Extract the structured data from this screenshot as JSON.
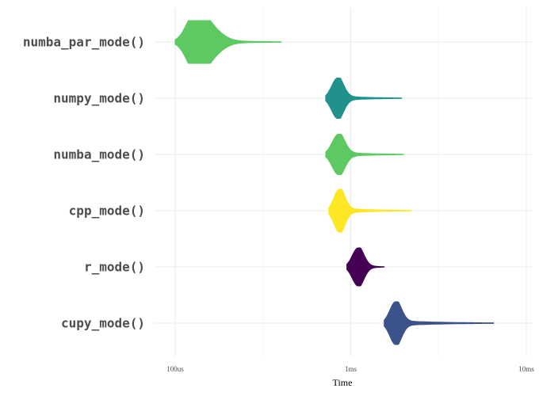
{
  "chart_data": {
    "type": "violin",
    "xlabel": "Time",
    "x_scale": "log",
    "x_ticks": [
      {
        "value_ms": 0.1,
        "label": "100us"
      },
      {
        "value_ms": 1,
        "label": "1ms"
      },
      {
        "value_ms": 10,
        "label": "10ms"
      }
    ],
    "xlim_ms": [
      0.08,
      12
    ],
    "grid": true,
    "legend": "none",
    "series": [
      {
        "label": "numba_par_mode()",
        "color": "#5ec962",
        "peaks_ms": [
          0.13,
          0.15
        ],
        "range_ms": [
          0.1,
          0.4
        ],
        "width": 0.9
      },
      {
        "label": "numpy_mode()",
        "color": "#21918c",
        "peaks_ms": [
          0.84
        ],
        "range_ms": [
          0.72,
          1.95
        ],
        "width": 0.85
      },
      {
        "label": "numba_mode()",
        "color": "#5ec962",
        "peaks_ms": [
          0.85
        ],
        "range_ms": [
          0.72,
          2.0
        ],
        "width": 0.85
      },
      {
        "label": "cpp_mode()",
        "color": "#fde725",
        "peaks_ms": [
          0.86
        ],
        "range_ms": [
          0.75,
          2.2
        ],
        "width": 0.9
      },
      {
        "label": "r_mode()",
        "color": "#440154",
        "peaks_ms": [
          1.1
        ],
        "range_ms": [
          0.95,
          1.55
        ],
        "width": 0.8
      },
      {
        "label": "cupy_mode()",
        "color": "#3b528b",
        "peaks_ms": [
          1.8
        ],
        "range_ms": [
          1.55,
          6.5
        ],
        "width": 0.9
      }
    ]
  }
}
